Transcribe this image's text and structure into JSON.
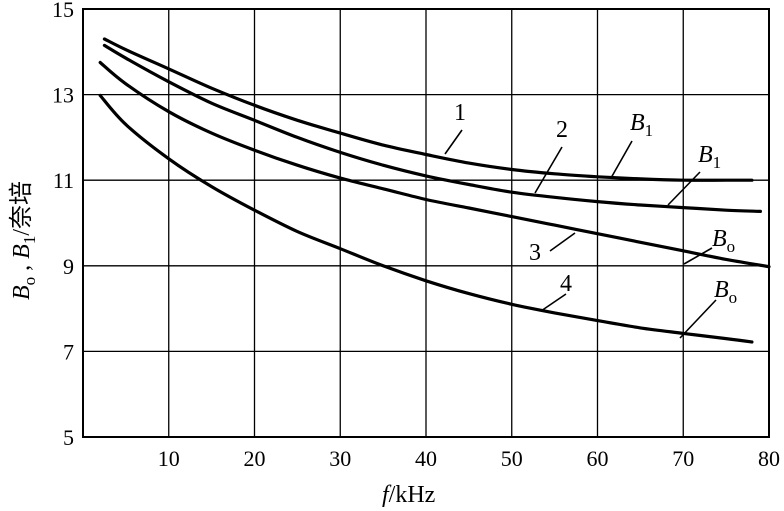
{
  "chart_data": {
    "type": "line",
    "xlabel": "f/kHz",
    "ylabel": "B₀ , B₁/奈培",
    "xlim": [
      0,
      80
    ],
    "ylim": [
      5,
      15
    ],
    "xticks": [
      "10",
      "20",
      "30",
      "40",
      "50",
      "60",
      "70",
      "80"
    ],
    "yticks": [
      "5",
      "7",
      "9",
      "11",
      "13",
      "15"
    ],
    "grid": true,
    "series": [
      {
        "name": "1",
        "tag": "B1",
        "x": [
          2.5,
          5,
          10,
          15,
          20,
          25,
          30,
          35,
          40,
          45,
          50,
          55,
          60,
          65,
          70,
          75,
          78
        ],
        "y": [
          14.3,
          14.05,
          13.6,
          13.15,
          12.75,
          12.4,
          12.1,
          11.82,
          11.6,
          11.4,
          11.25,
          11.15,
          11.08,
          11.03,
          11.0,
          11.0,
          11.0
        ]
      },
      {
        "name": "2",
        "tag": "B1",
        "x": [
          2.5,
          5,
          10,
          15,
          20,
          25,
          30,
          35,
          40,
          45,
          50,
          55,
          60,
          65,
          70,
          75,
          79
        ],
        "y": [
          14.15,
          13.85,
          13.3,
          12.8,
          12.4,
          12.0,
          11.65,
          11.35,
          11.1,
          10.9,
          10.72,
          10.6,
          10.5,
          10.42,
          10.36,
          10.3,
          10.27
        ]
      },
      {
        "name": "3",
        "tag": "B0",
        "x": [
          2,
          5,
          10,
          15,
          20,
          25,
          30,
          35,
          40,
          45,
          50,
          55,
          60,
          65,
          70,
          75,
          80
        ],
        "y": [
          13.75,
          13.25,
          12.6,
          12.1,
          11.7,
          11.35,
          11.05,
          10.8,
          10.55,
          10.35,
          10.15,
          9.95,
          9.75,
          9.55,
          9.35,
          9.15,
          8.98
        ]
      },
      {
        "name": "4",
        "tag": "B0",
        "x": [
          2,
          5,
          10,
          15,
          20,
          25,
          30,
          35,
          40,
          45,
          50,
          55,
          60,
          65,
          70,
          75,
          78
        ],
        "y": [
          12.98,
          12.3,
          11.5,
          10.85,
          10.3,
          9.8,
          9.4,
          9.0,
          8.65,
          8.35,
          8.1,
          7.9,
          7.72,
          7.55,
          7.42,
          7.3,
          7.22
        ]
      }
    ]
  }
}
